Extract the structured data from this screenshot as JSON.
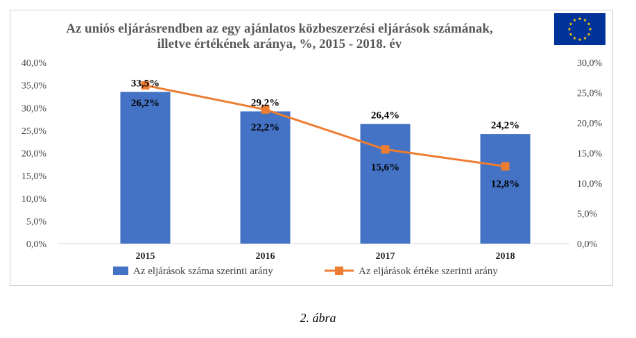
{
  "chart_data": {
    "type": "bar",
    "title_lines": [
      "Az uniós eljárásrendben az egy ajánlatos közbeszerzési eljárások számának,",
      "illetve értékének aránya, %, 2015 - 2018. év"
    ],
    "categories": [
      "2015",
      "2016",
      "2017",
      "2018"
    ],
    "series": [
      {
        "name": "Az eljárások száma szerinti arány",
        "type": "bar",
        "axis": "left",
        "values": [
          33.5,
          29.2,
          26.4,
          24.2
        ],
        "labels": [
          "33,5%",
          "29,2%",
          "26,4%",
          "24,2%"
        ],
        "color": "#4472C4"
      },
      {
        "name": "Az eljárások értéke szerinti arány",
        "type": "line",
        "axis": "right",
        "values": [
          26.2,
          22.2,
          15.6,
          12.8
        ],
        "labels": [
          "26,2%",
          "22,2%",
          "15,6%",
          "12,8%"
        ],
        "color": "#ED7D31"
      }
    ],
    "y_left": {
      "range": [
        0,
        40
      ],
      "ticks": [
        "0,0%",
        "5,0%",
        "10,0%",
        "15,0%",
        "20,0%",
        "25,0%",
        "30,0%",
        "35,0%",
        "40,0%"
      ]
    },
    "y_right": {
      "range": [
        0,
        30
      ],
      "ticks": [
        "0,0%",
        "5,0%",
        "10,0%",
        "15,0%",
        "20,0%",
        "25,0%",
        "30,0%"
      ]
    },
    "grid": false,
    "legend": "bottom"
  },
  "emblem": {
    "name": "eu-flag-icon",
    "background": "#003399",
    "star_color": "#FFCC00"
  },
  "caption": "2.    ábra"
}
